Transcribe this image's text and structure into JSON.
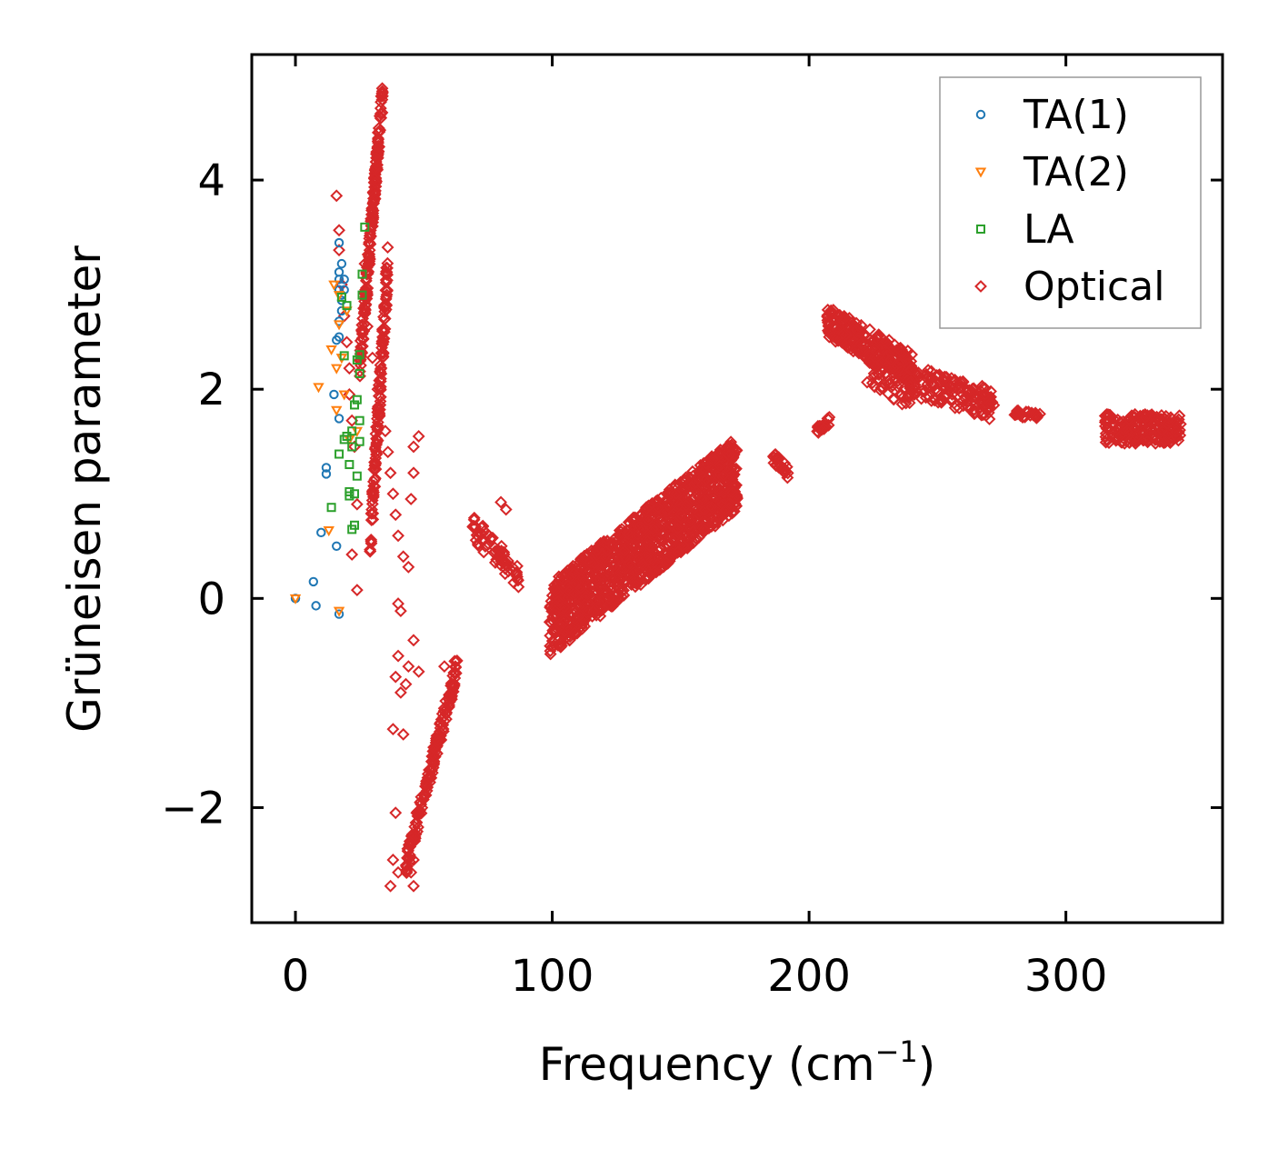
{
  "chart_data": {
    "type": "scatter",
    "title": "",
    "xlabel": "Frequency (cm",
    "xlabel_sup": "−1",
    "xlabel_tail": ")",
    "ylabel": "Grüneisen parameter",
    "xlim": [
      -17,
      361
    ],
    "ylim": [
      -3.1,
      5.2
    ],
    "xticks": [
      0,
      100,
      200,
      300
    ],
    "xtick_labels": [
      "0",
      "100",
      "200",
      "300"
    ],
    "yticks": [
      -2,
      0,
      2,
      4
    ],
    "ytick_labels": [
      "−2",
      "0",
      "2",
      "4"
    ],
    "legend_position": "top-right",
    "series": [
      {
        "name": "TA(1)",
        "marker": "circle",
        "color": "#1f77b4",
        "points": [
          [
            0,
            0
          ],
          [
            7,
            0.16
          ],
          [
            8,
            -0.07
          ],
          [
            10,
            0.63
          ],
          [
            12,
            1.25
          ],
          [
            12,
            1.19
          ],
          [
            15,
            1.95
          ],
          [
            16,
            2.47
          ],
          [
            16,
            0.5
          ],
          [
            17,
            1.72
          ],
          [
            17,
            2.65
          ],
          [
            17,
            2.95
          ],
          [
            17,
            3.05
          ],
          [
            17,
            3.12
          ],
          [
            17,
            3.4
          ],
          [
            18,
            3.2
          ],
          [
            18,
            2.75
          ],
          [
            17,
            2.5
          ],
          [
            17,
            -0.15
          ],
          [
            18,
            2.85
          ],
          [
            18,
            2.9
          ],
          [
            19,
            2.95
          ],
          [
            19,
            3.05
          ]
        ]
      },
      {
        "name": "TA(2)",
        "marker": "triangle-down",
        "color": "#ff7f0e",
        "points": [
          [
            0,
            0
          ],
          [
            9,
            2.02
          ],
          [
            13,
            0.65
          ],
          [
            14,
            2.38
          ],
          [
            15,
            3.0
          ],
          [
            16,
            2.2
          ],
          [
            16,
            1.8
          ],
          [
            17,
            2.9
          ],
          [
            17,
            2.62
          ],
          [
            17,
            -0.12
          ],
          [
            18,
            2.3
          ],
          [
            19,
            1.95
          ],
          [
            20,
            2.75
          ],
          [
            21,
            1.52
          ],
          [
            24,
            1.6
          ]
        ]
      },
      {
        "name": "LA",
        "marker": "square",
        "color": "#2ca02c",
        "points": [
          [
            14,
            0.87
          ],
          [
            17,
            1.38
          ],
          [
            18,
            2.88
          ],
          [
            19,
            1.52
          ],
          [
            19,
            2.32
          ],
          [
            20,
            1.55
          ],
          [
            20,
            2.8
          ],
          [
            21,
            0.98
          ],
          [
            21,
            1.28
          ],
          [
            21,
            1.02
          ],
          [
            22,
            1.6
          ],
          [
            22,
            0.66
          ],
          [
            22,
            1.45
          ],
          [
            23,
            1.85
          ],
          [
            23,
            0.7
          ],
          [
            23,
            1.0
          ],
          [
            24,
            1.9
          ],
          [
            24,
            1.17
          ],
          [
            24,
            2.28
          ],
          [
            25,
            2.33
          ],
          [
            25,
            1.7
          ],
          [
            25,
            1.5
          ],
          [
            25,
            2.15
          ],
          [
            26,
            2.9
          ],
          [
            26,
            3.1
          ],
          [
            27,
            3.55
          ]
        ]
      },
      {
        "name": "Optical",
        "marker": "diamond",
        "color": "#d62728",
        "scattered": [
          [
            16,
            3.85
          ],
          [
            17,
            3.52
          ],
          [
            17,
            3.33
          ],
          [
            18,
            3.0
          ],
          [
            19,
            2.7
          ],
          [
            20,
            2.45
          ],
          [
            21,
            2.2
          ],
          [
            21,
            1.95
          ],
          [
            22,
            1.7
          ],
          [
            23,
            1.45
          ],
          [
            22,
            0.42
          ],
          [
            24,
            0.08
          ],
          [
            24,
            0.9
          ],
          [
            27,
            3.2
          ],
          [
            28,
            2.9
          ],
          [
            28,
            2.6
          ],
          [
            30,
            2.3
          ],
          [
            32,
            2.0
          ],
          [
            33,
            1.85
          ],
          [
            35,
            1.6
          ],
          [
            36,
            1.4
          ],
          [
            37,
            1.2
          ],
          [
            38,
            1.0
          ],
          [
            39,
            0.8
          ],
          [
            40,
            0.6
          ],
          [
            42,
            0.4
          ],
          [
            44,
            0.3
          ],
          [
            45,
            0.95
          ],
          [
            46,
            1.2
          ],
          [
            46,
            1.45
          ],
          [
            48,
            1.55
          ],
          [
            40,
            -0.05
          ],
          [
            41,
            -0.12
          ],
          [
            40,
            -0.55
          ],
          [
            39,
            -0.75
          ],
          [
            41,
            -0.9
          ],
          [
            43,
            -0.82
          ],
          [
            44,
            -0.65
          ],
          [
            46,
            -0.4
          ],
          [
            48,
            -0.7
          ],
          [
            58,
            -0.65
          ],
          [
            62,
            -0.6
          ],
          [
            38,
            -1.25
          ],
          [
            42,
            -1.3
          ],
          [
            39,
            -2.05
          ],
          [
            38,
            -2.5
          ],
          [
            37,
            -2.75
          ],
          [
            40,
            -2.62
          ],
          [
            45,
            -2.62
          ],
          [
            46,
            -2.75
          ],
          [
            46,
            -2.5
          ],
          [
            80,
            0.92
          ],
          [
            82,
            0.85
          ],
          [
            85,
            0.15
          ]
        ],
        "bands": [
          {
            "x0": 25,
            "x1": 34,
            "y0": 2.2,
            "y1": 4.85,
            "n": 190,
            "spread": 0.3
          },
          {
            "x0": 29,
            "x1": 36,
            "y0": 0.5,
            "y1": 3.2,
            "n": 130,
            "spread": 0.4
          },
          {
            "x0": 43,
            "x1": 63,
            "y0": -2.55,
            "y1": -0.65,
            "n": 150,
            "spread": 0.22
          },
          {
            "x0": 69,
            "x1": 88,
            "y0": 0.68,
            "y1": 0.18,
            "n": 60,
            "spread": 0.25
          },
          {
            "x0": 99,
            "x1": 172,
            "y0": -0.2,
            "y1": 1.2,
            "n": 1300,
            "spread": 0.7
          },
          {
            "x0": 186,
            "x1": 192,
            "y0": 1.35,
            "y1": 1.2,
            "n": 25,
            "spread": 0.12
          },
          {
            "x0": 203,
            "x1": 208,
            "y0": 1.6,
            "y1": 1.7,
            "n": 20,
            "spread": 0.08
          },
          {
            "x0": 207,
            "x1": 240,
            "y0": 2.65,
            "y1": 2.2,
            "n": 260,
            "spread": 0.3
          },
          {
            "x0": 222,
            "x1": 240,
            "y0": 2.3,
            "y1": 2.0,
            "n": 70,
            "spread": 0.45
          },
          {
            "x0": 238,
            "x1": 272,
            "y0": 2.1,
            "y1": 1.85,
            "n": 160,
            "spread": 0.3
          },
          {
            "x0": 280,
            "x1": 290,
            "y0": 1.77,
            "y1": 1.74,
            "n": 25,
            "spread": 0.06
          },
          {
            "x0": 315,
            "x1": 345,
            "y0": 1.62,
            "y1": 1.62,
            "n": 200,
            "spread": 0.28
          }
        ]
      }
    ]
  }
}
